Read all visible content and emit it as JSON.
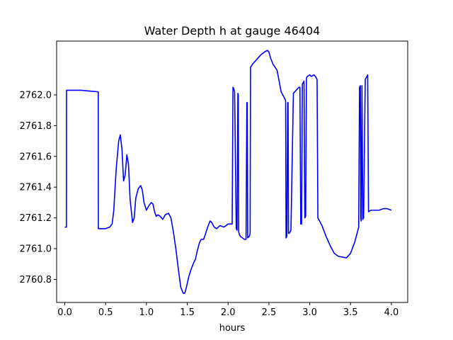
{
  "chart_data": {
    "type": "line",
    "title": "Water Depth h at gauge 46404",
    "xlabel": "hours",
    "ylabel": "",
    "xlim": [
      -0.1,
      4.2
    ],
    "ylim": [
      2760.65,
      2762.35
    ],
    "xticks": [
      0.0,
      0.5,
      1.0,
      1.5,
      2.0,
      2.5,
      3.0,
      3.5,
      4.0
    ],
    "xtick_labels": [
      "0.0",
      "0.5",
      "1.0",
      "1.5",
      "2.0",
      "2.5",
      "3.0",
      "3.5",
      "4.0"
    ],
    "yticks": [
      2760.8,
      2761.0,
      2761.2,
      2761.4,
      2761.6,
      2761.8,
      2762.0
    ],
    "ytick_labels": [
      "2760.8",
      "2761.0",
      "2761.2",
      "2761.4",
      "2761.6",
      "2761.8",
      "2762.0"
    ],
    "grid": false,
    "legend": "none",
    "series": [
      {
        "color": "#0000ff",
        "x": [
          0.0,
          0.02,
          0.021,
          0.2,
          0.41,
          0.411,
          0.5,
          0.55,
          0.58,
          0.6,
          0.63,
          0.66,
          0.68,
          0.7,
          0.72,
          0.74,
          0.76,
          0.78,
          0.8,
          0.83,
          0.85,
          0.87,
          0.9,
          0.93,
          0.95,
          0.97,
          1.0,
          1.03,
          1.06,
          1.08,
          1.1,
          1.12,
          1.14,
          1.17,
          1.2,
          1.23,
          1.27,
          1.3,
          1.33,
          1.36,
          1.39,
          1.42,
          1.45,
          1.47,
          1.49,
          1.52,
          1.55,
          1.58,
          1.6,
          1.62,
          1.65,
          1.67,
          1.7,
          1.72,
          1.75,
          1.78,
          1.8,
          1.83,
          1.86,
          1.9,
          1.95,
          2.0,
          2.05,
          2.06,
          2.07,
          2.08,
          2.1,
          2.11,
          2.12,
          2.125,
          2.13,
          2.135,
          2.14,
          2.15,
          2.2,
          2.22,
          2.23,
          2.235,
          2.24,
          2.26,
          2.27,
          2.275,
          2.3,
          2.35,
          2.4,
          2.45,
          2.48,
          2.5,
          2.52,
          2.55,
          2.6,
          2.65,
          2.7,
          2.705,
          2.71,
          2.72,
          2.73,
          2.735,
          2.74,
          2.75,
          2.76,
          2.77,
          2.8,
          2.85,
          2.87,
          2.88,
          2.89,
          2.9,
          2.91,
          2.92,
          2.93,
          2.94,
          2.95,
          2.96,
          2.97,
          3.0,
          3.02,
          3.05,
          3.07,
          3.09,
          3.1,
          3.15,
          3.2,
          3.25,
          3.3,
          3.35,
          3.4,
          3.45,
          3.5,
          3.55,
          3.6,
          3.61,
          3.62,
          3.625,
          3.63,
          3.64,
          3.65,
          3.66,
          3.68,
          3.7,
          3.71,
          3.72,
          3.75,
          3.8,
          3.85,
          3.9,
          3.95,
          4.0
        ],
        "y": [
          2761.14,
          2761.14,
          2762.03,
          2762.03,
          2762.02,
          2761.13,
          2761.13,
          2761.14,
          2761.16,
          2761.25,
          2761.52,
          2761.7,
          2761.74,
          2761.65,
          2761.44,
          2761.48,
          2761.61,
          2761.55,
          2761.32,
          2761.17,
          2761.2,
          2761.33,
          2761.39,
          2761.41,
          2761.38,
          2761.3,
          2761.25,
          2761.28,
          2761.3,
          2761.29,
          2761.24,
          2761.21,
          2761.22,
          2761.21,
          2761.19,
          2761.22,
          2761.23,
          2761.2,
          2761.11,
          2761.0,
          2760.87,
          2760.75,
          2760.71,
          2760.71,
          2760.75,
          2760.82,
          2760.87,
          2760.91,
          2760.93,
          2760.98,
          2761.04,
          2761.06,
          2761.06,
          2761.09,
          2761.14,
          2761.18,
          2761.17,
          2761.14,
          2761.13,
          2761.15,
          2761.14,
          2761.16,
          2761.16,
          2762.05,
          2762.04,
          2762.02,
          2761.13,
          2761.12,
          2762.01,
          2762.0,
          2761.11,
          2761.1,
          2761.09,
          2761.08,
          2761.06,
          2761.06,
          2761.95,
          2761.95,
          2761.07,
          2761.08,
          2761.1,
          2762.18,
          2762.2,
          2762.23,
          2762.26,
          2762.28,
          2762.29,
          2762.28,
          2762.24,
          2762.2,
          2762.16,
          2762.02,
          2761.97,
          2761.96,
          2761.07,
          2761.08,
          2761.95,
          2761.95,
          2761.1,
          2761.1,
          2761.11,
          2761.12,
          2762.01,
          2762.04,
          2762.05,
          2762.05,
          2761.16,
          2761.16,
          2762.07,
          2762.08,
          2762.09,
          2761.2,
          2761.21,
          2762.11,
          2762.12,
          2762.13,
          2762.12,
          2762.13,
          2762.12,
          2762.1,
          2761.2,
          2761.15,
          2761.08,
          2761.02,
          2760.97,
          2760.95,
          2760.945,
          2760.94,
          2760.97,
          2761.04,
          2761.14,
          2762.05,
          2762.06,
          2761.2,
          2761.18,
          2762.06,
          2761.19,
          2761.2,
          2762.1,
          2762.12,
          2762.13,
          2761.24,
          2761.25,
          2761.25,
          2761.25,
          2761.26,
          2761.26,
          2761.25
        ]
      }
    ]
  }
}
